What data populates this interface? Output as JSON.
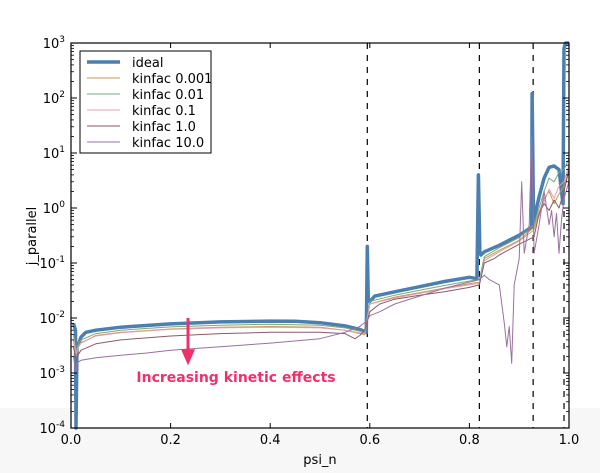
{
  "chart_data": {
    "type": "line",
    "title": "",
    "xlabel": "psi_n",
    "ylabel": "j_parallel",
    "xlim": [
      0.0,
      1.0
    ],
    "ylim": [
      0.0001,
      1000
    ],
    "yscale": "log",
    "x_ticks": [
      "0.0",
      "0.2",
      "0.4",
      "0.6",
      "0.8",
      "1.0"
    ],
    "x_tick_values": [
      0.0,
      0.2,
      0.4,
      0.6,
      0.8,
      1.0
    ],
    "y_ticks": [
      {
        "base": "10",
        "exp": "3",
        "value": 1000
      },
      {
        "base": "10",
        "exp": "2",
        "value": 100
      },
      {
        "base": "10",
        "exp": "1",
        "value": 10
      },
      {
        "base": "10",
        "exp": "0",
        "value": 1
      },
      {
        "base": "10",
        "exp": "-1",
        "value": 0.1
      },
      {
        "base": "10",
        "exp": "-2",
        "value": 0.01
      },
      {
        "base": "10",
        "exp": "-3",
        "value": 0.001
      },
      {
        "base": "10",
        "exp": "-4",
        "value": 0.0001
      }
    ],
    "legend_position": "top-left",
    "vertical_dashed_lines": [
      0.595,
      0.82,
      0.928,
      0.99
    ],
    "annotation": {
      "text": "Increasing kinetic effects",
      "arrow_x": 0.235,
      "arrow_from": 0.01,
      "arrow_to": 0.0015,
      "color": "#f0306a"
    },
    "series": [
      {
        "name": "ideal",
        "color": "#4a7fb0",
        "width": 3.5,
        "x": [
          0.005,
          0.009,
          0.01,
          0.012,
          0.016,
          0.02,
          0.03,
          0.05,
          0.1,
          0.2,
          0.3,
          0.4,
          0.45,
          0.5,
          0.55,
          0.58,
          0.593,
          0.595,
          0.597,
          0.6,
          0.61,
          0.65,
          0.7,
          0.75,
          0.8,
          0.815,
          0.818,
          0.821,
          0.823,
          0.83,
          0.86,
          0.9,
          0.925,
          0.926,
          0.929,
          0.931,
          0.94,
          0.95,
          0.96,
          0.97,
          0.98,
          0.985,
          0.988,
          0.99,
          0.993,
          1.0
        ],
        "y": [
          0.008,
          0.006,
          0.0001,
          0.003,
          0.0035,
          0.0045,
          0.0055,
          0.006,
          0.0068,
          0.0078,
          0.0085,
          0.0088,
          0.0087,
          0.0082,
          0.0072,
          0.0062,
          0.0055,
          0.2,
          0.02,
          0.02,
          0.025,
          0.03,
          0.037,
          0.046,
          0.055,
          0.052,
          4,
          0.15,
          0.14,
          0.16,
          0.21,
          0.32,
          0.45,
          120,
          0.5,
          0.7,
          1.6,
          3.5,
          5.5,
          5.8,
          5.0,
          2.0,
          1.2,
          800,
          1000,
          1000
        ]
      },
      {
        "name": "kinfac 0.001",
        "color": "#c89a4a",
        "width": 1,
        "x": [
          0.005,
          0.01,
          0.015,
          0.02,
          0.05,
          0.1,
          0.2,
          0.3,
          0.4,
          0.5,
          0.55,
          0.59,
          0.6,
          0.65,
          0.7,
          0.75,
          0.8,
          0.82,
          0.83,
          0.86,
          0.9,
          0.93,
          0.95,
          0.96,
          0.97,
          0.98,
          0.99,
          1.0
        ],
        "y": [
          0.004,
          0.002,
          0.003,
          0.0035,
          0.0048,
          0.0055,
          0.0063,
          0.0068,
          0.007,
          0.0068,
          0.006,
          0.005,
          0.018,
          0.024,
          0.029,
          0.035,
          0.042,
          0.045,
          0.12,
          0.17,
          0.26,
          0.45,
          1.5,
          2.0,
          1.2,
          1.8,
          2.5,
          5
        ]
      },
      {
        "name": "kinfac 0.01",
        "color": "#7aa87a",
        "width": 1,
        "x": [
          0.005,
          0.01,
          0.015,
          0.02,
          0.05,
          0.1,
          0.2,
          0.3,
          0.4,
          0.5,
          0.55,
          0.59,
          0.6,
          0.65,
          0.7,
          0.75,
          0.8,
          0.82,
          0.83,
          0.86,
          0.9,
          0.93,
          0.95,
          0.96,
          0.97,
          0.98,
          0.99,
          1.0
        ],
        "y": [
          0.005,
          0.0025,
          0.0035,
          0.004,
          0.0052,
          0.006,
          0.0069,
          0.0074,
          0.0077,
          0.0074,
          0.0066,
          0.0055,
          0.02,
          0.026,
          0.032,
          0.039,
          0.047,
          0.05,
          0.13,
          0.19,
          0.29,
          0.5,
          2.0,
          3.5,
          3.0,
          4.5,
          5,
          8
        ]
      },
      {
        "name": "kinfac 0.1",
        "color": "#e0a0b0",
        "width": 1,
        "x": [
          0.005,
          0.01,
          0.015,
          0.02,
          0.05,
          0.1,
          0.2,
          0.3,
          0.4,
          0.5,
          0.55,
          0.59,
          0.6,
          0.65,
          0.7,
          0.75,
          0.8,
          0.82,
          0.83,
          0.86,
          0.9,
          0.93,
          0.95,
          0.96,
          0.97,
          0.98,
          0.99,
          1.0
        ],
        "y": [
          0.0045,
          0.0022,
          0.003,
          0.0036,
          0.0047,
          0.0054,
          0.0062,
          0.0066,
          0.0068,
          0.0066,
          0.006,
          0.0052,
          0.018,
          0.023,
          0.028,
          0.034,
          0.04,
          0.043,
          0.11,
          0.16,
          0.25,
          0.4,
          1.3,
          2.2,
          1.5,
          2.5,
          3,
          6
        ]
      },
      {
        "name": "kinfac 1.0",
        "color": "#8a5a6a",
        "width": 1,
        "x": [
          0.005,
          0.01,
          0.015,
          0.02,
          0.05,
          0.1,
          0.2,
          0.3,
          0.4,
          0.5,
          0.55,
          0.57,
          0.58,
          0.59,
          0.6,
          0.62,
          0.65,
          0.7,
          0.75,
          0.8,
          0.82,
          0.83,
          0.85,
          0.86,
          0.9,
          0.93,
          0.94,
          0.95,
          0.96,
          0.97,
          0.98,
          0.99,
          1.0
        ],
        "y": [
          0.003,
          0.0018,
          0.0022,
          0.0026,
          0.0034,
          0.004,
          0.0047,
          0.0052,
          0.0055,
          0.0055,
          0.0052,
          0.0042,
          0.0048,
          0.006,
          0.013,
          0.018,
          0.022,
          0.026,
          0.03,
          0.036,
          0.04,
          0.1,
          0.12,
          0.14,
          0.22,
          0.3,
          0.8,
          1.2,
          0.9,
          1.4,
          1.0,
          2,
          5
        ]
      },
      {
        "name": "kinfac 10.0",
        "color": "#9a70a0",
        "width": 1,
        "x": [
          0.005,
          0.01,
          0.012,
          0.015,
          0.02,
          0.05,
          0.1,
          0.15,
          0.2,
          0.3,
          0.4,
          0.5,
          0.55,
          0.58,
          0.595,
          0.6,
          0.62,
          0.65,
          0.7,
          0.75,
          0.8,
          0.82,
          0.83,
          0.84,
          0.86,
          0.87,
          0.875,
          0.88,
          0.885,
          0.89,
          0.9,
          0.905,
          0.91,
          0.92,
          0.925,
          0.93,
          0.94,
          0.95,
          0.96,
          0.965,
          0.97,
          0.975,
          0.98,
          0.985,
          0.99,
          1.0
        ],
        "y": [
          0.002,
          0.001,
          0.0015,
          0.0016,
          0.0017,
          0.0019,
          0.0021,
          0.0023,
          0.0026,
          0.003,
          0.0035,
          0.0042,
          0.0055,
          0.007,
          0.009,
          0.011,
          0.013,
          0.018,
          0.025,
          0.035,
          0.045,
          0.05,
          0.06,
          0.05,
          0.04,
          0.008,
          0.003,
          0.007,
          0.0015,
          0.04,
          0.12,
          3,
          0.15,
          0.5,
          20,
          0.15,
          0.5,
          2.0,
          0.5,
          0.9,
          0.3,
          0.8,
          0.15,
          0.6,
          1.5,
          3
        ]
      }
    ]
  }
}
